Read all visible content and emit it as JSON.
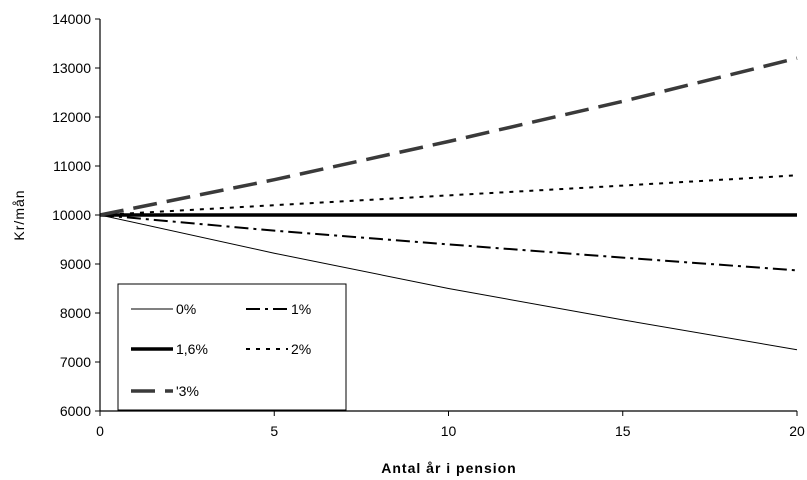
{
  "chart_data": {
    "type": "line",
    "xlabel": "Antal år i pension",
    "ylabel": "Kr/mån",
    "xlim": [
      0,
      20
    ],
    "ylim": [
      6000,
      14000
    ],
    "x_ticks": [
      0,
      5,
      10,
      15,
      20
    ],
    "y_ticks": [
      6000,
      7000,
      8000,
      9000,
      10000,
      11000,
      12000,
      13000,
      14000
    ],
    "grid": false,
    "legend_position": "bottom-left",
    "series": [
      {
        "name": "0%",
        "style": "thin-solid",
        "x": [
          0,
          5,
          10,
          15,
          20
        ],
        "y": [
          10000,
          9220,
          8500,
          7860,
          7250
        ]
      },
      {
        "name": "1%",
        "style": "dash-dot",
        "x": [
          0,
          5,
          10,
          15,
          20
        ],
        "y": [
          10000,
          9680,
          9400,
          9130,
          8870
        ]
      },
      {
        "name": "1,6%",
        "style": "thick-solid",
        "x": [
          0,
          5,
          10,
          15,
          20
        ],
        "y": [
          10000,
          10000,
          10000,
          10000,
          10000
        ]
      },
      {
        "name": "2%",
        "style": "dotted",
        "x": [
          0,
          5,
          10,
          15,
          20
        ],
        "y": [
          10000,
          10200,
          10400,
          10600,
          10810
        ]
      },
      {
        "name": "'3%",
        "style": "long-dash",
        "x": [
          0,
          5,
          10,
          15,
          20
        ],
        "y": [
          10000,
          10720,
          11500,
          12320,
          13200
        ]
      }
    ]
  }
}
